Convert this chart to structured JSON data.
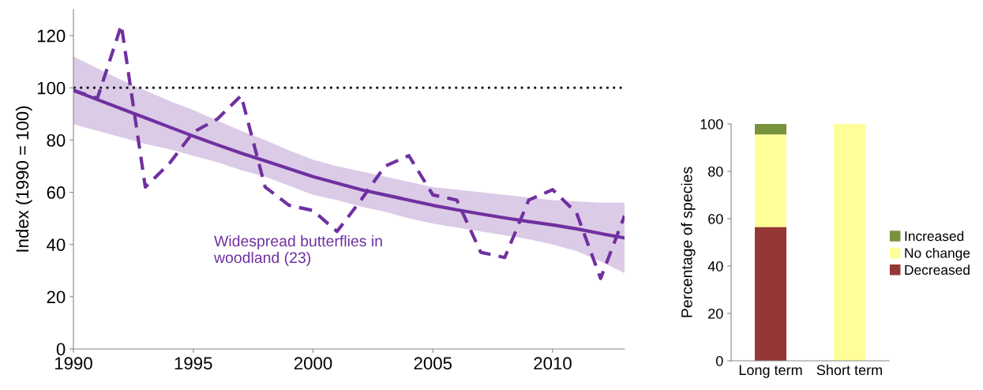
{
  "chart_data": [
    {
      "type": "line",
      "ylabel": "Index (1990 = 100)",
      "x": [
        1990,
        1991,
        1992,
        1993,
        1994,
        1995,
        1996,
        1997,
        1998,
        1999,
        2000,
        2001,
        2002,
        2003,
        2004,
        2005,
        2006,
        2007,
        2008,
        2009,
        2010,
        2011,
        2012,
        2013
      ],
      "xlim": [
        1990,
        2013
      ],
      "xticks": [
        1990,
        1995,
        2000,
        2005,
        2010
      ],
      "ylim": [
        0,
        130
      ],
      "yticks": [
        0,
        20,
        40,
        60,
        80,
        100,
        120
      ],
      "grid": false,
      "series": [
        {
          "color": "#7030a0",
          "line_style": "dashed",
          "values": [
            99,
            96,
            124,
            62,
            71,
            83,
            88,
            97,
            62,
            55,
            53,
            45,
            57,
            70,
            74,
            59,
            57,
            37,
            35,
            57,
            61,
            52,
            27,
            51
          ]
        },
        {
          "color": "#7030a0",
          "line_style": "solid",
          "values": [
            99,
            95.5,
            92,
            88.5,
            85,
            81.5,
            78.2,
            75,
            72,
            69,
            66,
            63.5,
            61,
            59,
            57,
            55,
            53.3,
            51.7,
            50.2,
            48.8,
            47.5,
            46,
            44.2,
            42.5
          ],
          "upper": [
            112,
            107.5,
            103,
            99,
            95,
            91.5,
            87.5,
            83.5,
            80,
            76,
            72.5,
            70,
            68,
            66,
            64,
            62,
            61,
            60,
            59,
            58,
            57,
            56.5,
            56,
            56
          ],
          "lower": [
            86,
            83.5,
            81,
            78.5,
            76.5,
            74,
            71.5,
            68.5,
            66,
            62.5,
            59,
            57,
            54.5,
            52.5,
            50,
            48,
            46.5,
            45,
            43.5,
            42,
            40,
            37.5,
            33.5,
            29
          ]
        }
      ],
      "ref_lines": [
        {
          "axis": "y",
          "value": 100,
          "color": "#000000",
          "line_style": "dotted"
        }
      ],
      "annotations": [
        "Widespread butterflies in\nwoodland (23)"
      ]
    },
    {
      "type": "bar",
      "stacked": true,
      "ylabel": "Percentage of species",
      "categories": [
        "Long term",
        "Short term"
      ],
      "ylim": [
        0,
        100
      ],
      "yticks": [
        0,
        20,
        40,
        60,
        80,
        100
      ],
      "grid": false,
      "legend": "right",
      "series": [
        {
          "name": "Decreased",
          "color": "#953735",
          "values": [
            56.5,
            0
          ]
        },
        {
          "name": "No change",
          "color": "#ffff99",
          "values": [
            39.1,
            100
          ]
        },
        {
          "name": "Increased",
          "color": "#77933c",
          "values": [
            4.4,
            0
          ]
        }
      ]
    }
  ]
}
